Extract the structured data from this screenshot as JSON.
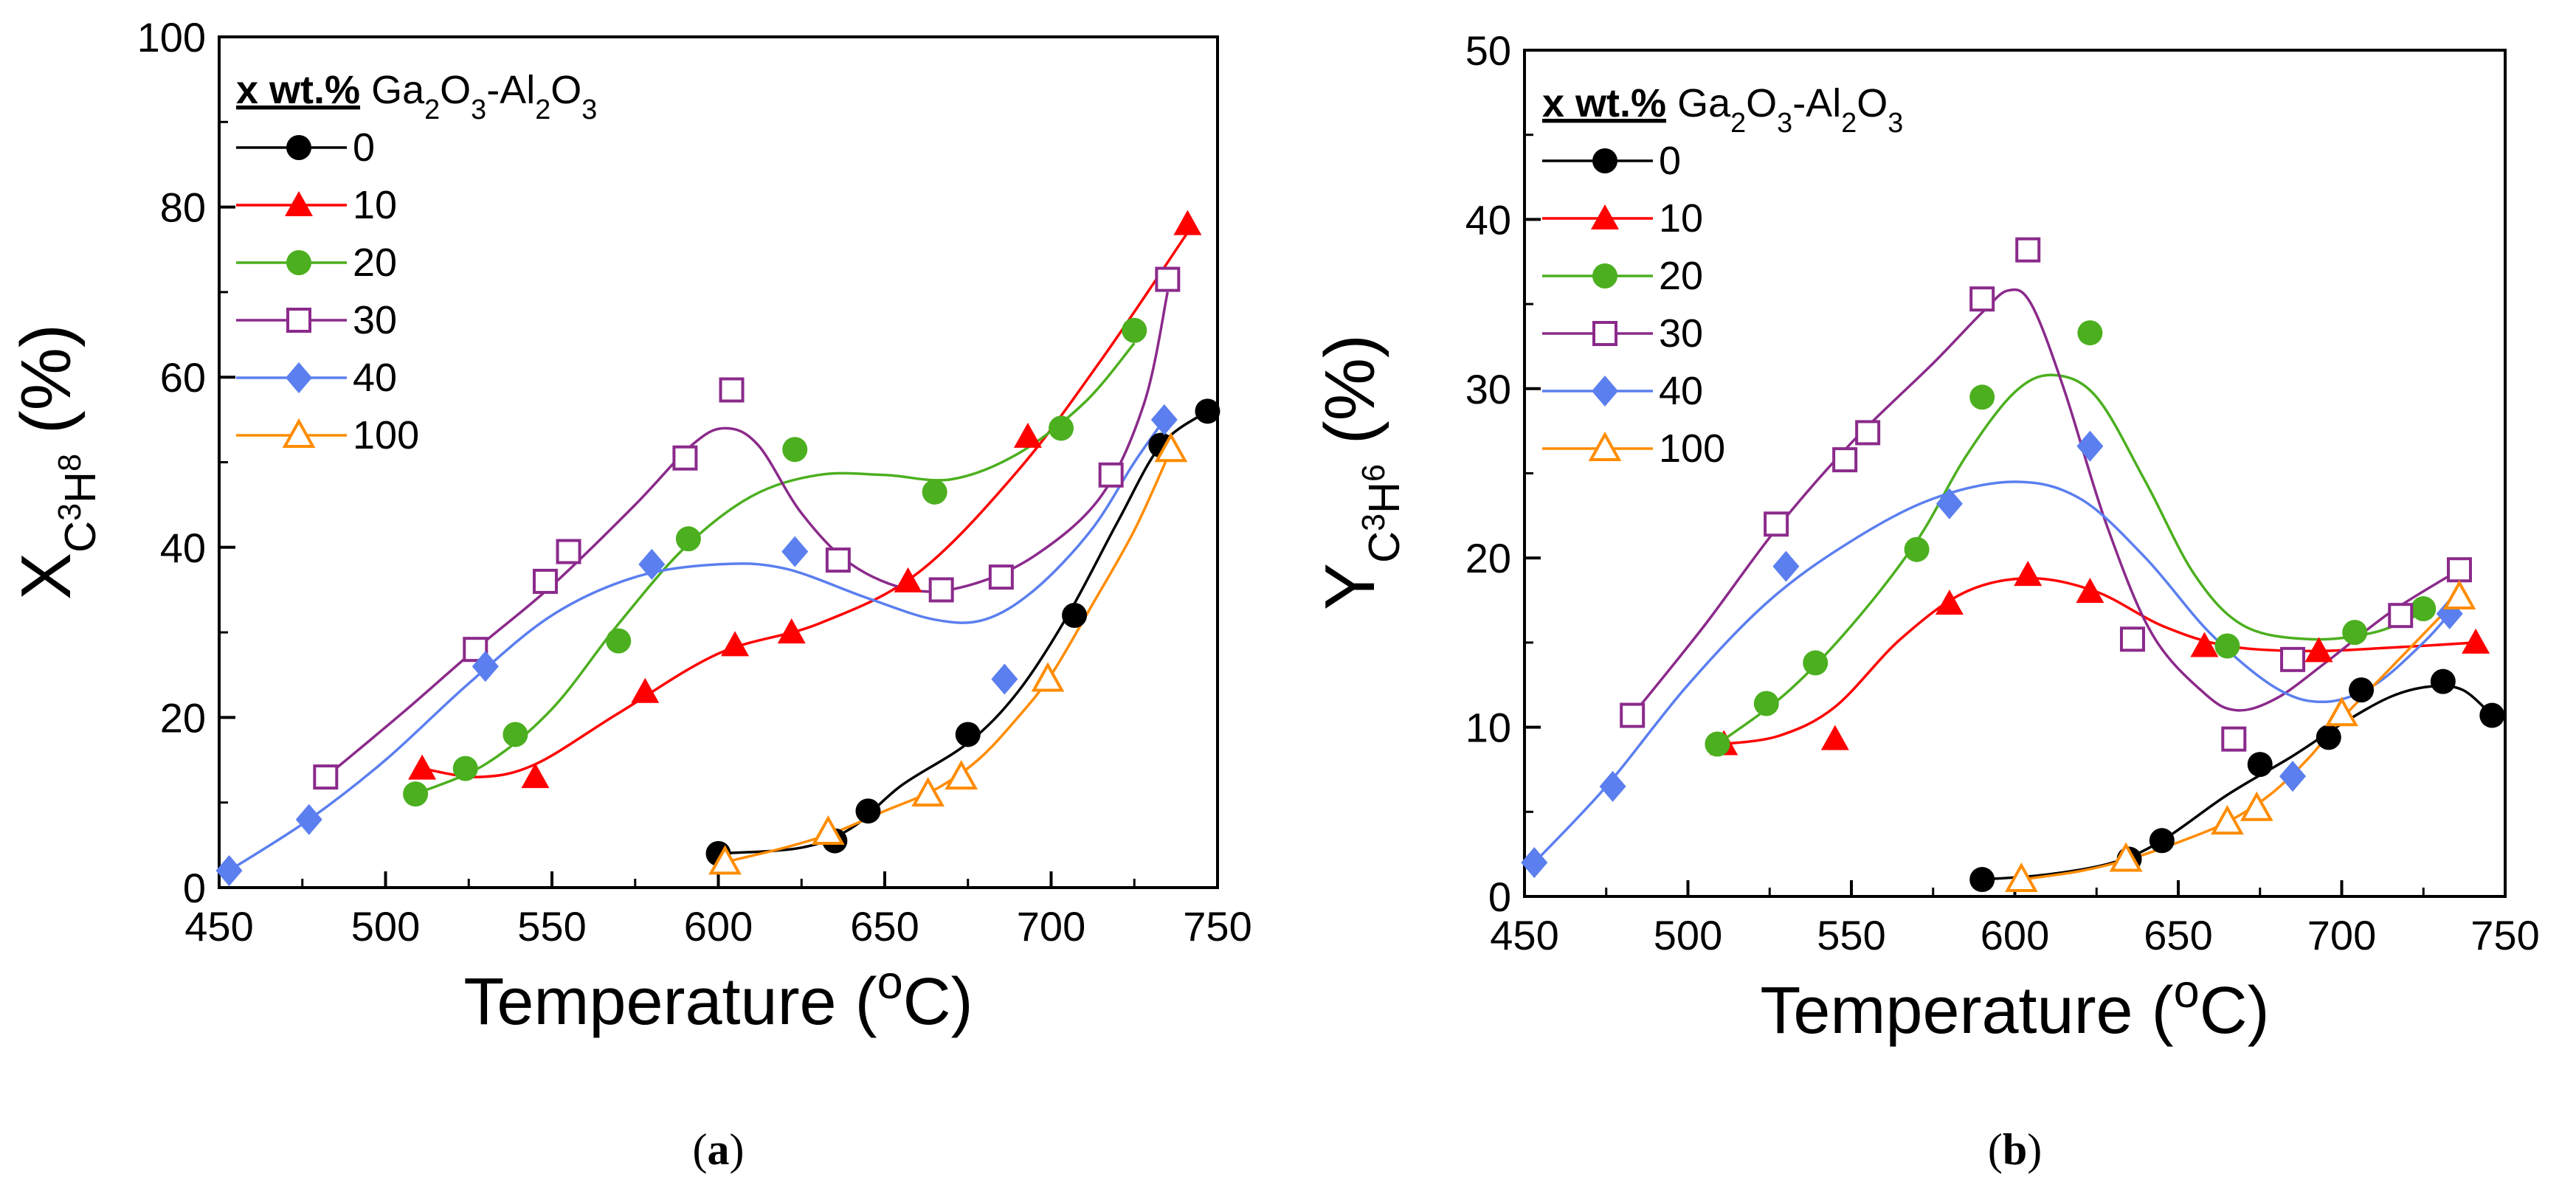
{
  "colors": {
    "0": "#000000",
    "10": "#ff0000",
    "20": "#4caf1f",
    "30": "#8b2a8b",
    "40": "#5b7fef",
    "100": "#ff8c00"
  },
  "legend_header": {
    "bold": "x wt.%",
    "formula": "Ga2O3-Al2O3"
  },
  "chart_data": [
    {
      "type": "scatter",
      "panel": "(a)",
      "xlabel": "Temperature (oC)",
      "ylabel": "XC3H8 (%)",
      "xlim": [
        450,
        750
      ],
      "ylim": [
        0,
        100
      ],
      "xticks": [
        450,
        500,
        550,
        600,
        650,
        700,
        750
      ],
      "yticks": [
        0,
        20,
        40,
        60,
        80,
        100
      ],
      "legend_title": "x wt.% Ga2O3-Al2O3",
      "series": [
        {
          "name": "0",
          "marker": "circle",
          "fill": true,
          "points": [
            [
              600,
              4
            ],
            [
              635,
              5.5
            ],
            [
              645,
              9
            ],
            [
              675,
              18
            ],
            [
              707,
              32
            ],
            [
              733,
              52
            ],
            [
              747,
              56
            ]
          ],
          "fit": [
            [
              600,
              4
            ],
            [
              625,
              4.7
            ],
            [
              640,
              7
            ],
            [
              655,
              12
            ],
            [
              675,
              17
            ],
            [
              690,
              23
            ],
            [
              705,
              32
            ],
            [
              720,
              43
            ],
            [
              733,
              52
            ],
            [
              747,
              56
            ]
          ]
        },
        {
          "name": "10",
          "marker": "triangle",
          "fill": true,
          "points": [
            [
              511,
              14
            ],
            [
              545,
              13
            ],
            [
              578,
              23
            ],
            [
              605,
              28.5
            ],
            [
              622,
              30
            ],
            [
              657,
              36
            ],
            [
              693,
              53
            ],
            [
              741,
              78
            ]
          ],
          "fit": [
            [
              511,
              14
            ],
            [
              528,
              13
            ],
            [
              545,
              14.5
            ],
            [
              570,
              20.5
            ],
            [
              600,
              27.5
            ],
            [
              630,
              31
            ],
            [
              660,
              37
            ],
            [
              690,
              49
            ],
            [
              715,
              62
            ],
            [
              741,
              77
            ]
          ]
        },
        {
          "name": "20",
          "marker": "circle",
          "fill": true,
          "points": [
            [
              509,
              11
            ],
            [
              524,
              14
            ],
            [
              539,
              18
            ],
            [
              570,
              29
            ],
            [
              591,
              41
            ],
            [
              623,
              51.5
            ],
            [
              665,
              46.5
            ],
            [
              703,
              54
            ],
            [
              725,
              65.5
            ]
          ],
          "fit": [
            [
              509,
              11
            ],
            [
              530,
              14.5
            ],
            [
              550,
              21
            ],
            [
              570,
              31
            ],
            [
              590,
              40
            ],
            [
              610,
              46
            ],
            [
              630,
              48.5
            ],
            [
              650,
              48.5
            ],
            [
              670,
              48
            ],
            [
              690,
              51
            ],
            [
              710,
              57
            ],
            [
              725,
              64
            ]
          ]
        },
        {
          "name": "30",
          "marker": "square",
          "fill": false,
          "points": [
            [
              482,
              13
            ],
            [
              527,
              28
            ],
            [
              548,
              36
            ],
            [
              555,
              39.5
            ],
            [
              590,
              50.5
            ],
            [
              604,
              58.5
            ],
            [
              636,
              38.5
            ],
            [
              667,
              35
            ],
            [
              685,
              36.5
            ],
            [
              718,
              48.5
            ],
            [
              735,
              71.5
            ]
          ],
          "fit": [
            [
              482,
              13
            ],
            [
              505,
              20.5
            ],
            [
              527,
              28
            ],
            [
              550,
              35.5
            ],
            [
              575,
              45
            ],
            [
              592,
              52
            ],
            [
              602,
              54
            ],
            [
              612,
              52
            ],
            [
              625,
              44
            ],
            [
              640,
              38
            ],
            [
              658,
              35
            ],
            [
              675,
              35.5
            ],
            [
              695,
              39
            ],
            [
              715,
              46
            ],
            [
              728,
              57
            ],
            [
              735,
              70
            ]
          ]
        },
        {
          "name": "40",
          "marker": "diamond",
          "fill": true,
          "points": [
            [
              453,
              2
            ],
            [
              477,
              8
            ],
            [
              530,
              26
            ],
            [
              580,
              38
            ],
            [
              623,
              39.5
            ],
            [
              686,
              24.5
            ],
            [
              734,
              55
            ]
          ],
          "fit": [
            [
              453,
              2
            ],
            [
              477,
              8
            ],
            [
              500,
              15
            ],
            [
              525,
              24
            ],
            [
              550,
              32
            ],
            [
              575,
              36.5
            ],
            [
              600,
              38
            ],
            [
              620,
              37.5
            ],
            [
              645,
              34
            ],
            [
              665,
              31.5
            ],
            [
              680,
              31.5
            ],
            [
              695,
              35
            ],
            [
              712,
              42
            ],
            [
              725,
              50
            ],
            [
              734,
              55
            ]
          ]
        },
        {
          "name": "100",
          "marker": "triangle",
          "fill": false,
          "points": [
            [
              602,
              3
            ],
            [
              633,
              6.5
            ],
            [
              663,
              11
            ],
            [
              673,
              13
            ],
            [
              699,
              24.5
            ],
            [
              736,
              51.5
            ]
          ],
          "fit": [
            [
              602,
              3
            ],
            [
              620,
              4.7
            ],
            [
              635,
              6.5
            ],
            [
              650,
              9
            ],
            [
              665,
              11.5
            ],
            [
              678,
              15
            ],
            [
              690,
              20
            ],
            [
              700,
              25
            ],
            [
              712,
              33
            ],
            [
              725,
              42
            ],
            [
              736,
              51.5
            ]
          ]
        }
      ]
    },
    {
      "type": "scatter",
      "panel": "(b)",
      "xlabel": "Temperature (oC)",
      "ylabel": "YC3H6 (%)",
      "xlim": [
        450,
        750
      ],
      "ylim": [
        0,
        50
      ],
      "xticks": [
        450,
        500,
        550,
        600,
        650,
        700,
        750
      ],
      "yticks": [
        0,
        10,
        20,
        30,
        40,
        50
      ],
      "legend_title": "x wt.% Ga2O3-Al2O3",
      "series": [
        {
          "name": "0",
          "marker": "circle",
          "fill": true,
          "points": [
            [
              590,
              1
            ],
            [
              635,
              2.2
            ],
            [
              645,
              3.3
            ],
            [
              675,
              7.8
            ],
            [
              696,
              9.4
            ],
            [
              706,
              12.2
            ],
            [
              731,
              12.7
            ],
            [
              746,
              10.7
            ]
          ],
          "fit": [
            [
              590,
              1
            ],
            [
              610,
              1.3
            ],
            [
              630,
              2
            ],
            [
              645,
              3.3
            ],
            [
              665,
              6
            ],
            [
              685,
              8.3
            ],
            [
              700,
              10.2
            ],
            [
              715,
              11.8
            ],
            [
              727,
              12.4
            ],
            [
              737,
              12.2
            ],
            [
              746,
              10.7
            ]
          ]
        },
        {
          "name": "10",
          "marker": "triangle",
          "fill": true,
          "points": [
            [
              511,
              9
            ],
            [
              545,
              9.3
            ],
            [
              580,
              17.3
            ],
            [
              604,
              19
            ],
            [
              623,
              18
            ],
            [
              658,
              14.8
            ],
            [
              693,
              14.5
            ],
            [
              741,
              15
            ]
          ],
          "fit": [
            [
              511,
              9
            ],
            [
              528,
              9.5
            ],
            [
              545,
              11.2
            ],
            [
              565,
              15.2
            ],
            [
              585,
              18
            ],
            [
              605,
              18.8
            ],
            [
              625,
              18
            ],
            [
              645,
              16
            ],
            [
              665,
              14.8
            ],
            [
              690,
              14.5
            ],
            [
              715,
              14.7
            ],
            [
              741,
              15
            ]
          ]
        },
        {
          "name": "20",
          "marker": "circle",
          "fill": true,
          "points": [
            [
              509,
              9
            ],
            [
              524,
              11.4
            ],
            [
              539,
              13.8
            ],
            [
              570,
              20.5
            ],
            [
              590,
              29.5
            ],
            [
              623,
              33.3
            ],
            [
              665,
              14.8
            ],
            [
              704,
              15.6
            ],
            [
              725,
              17
            ]
          ],
          "fit": [
            [
              509,
              9
            ],
            [
              530,
              12
            ],
            [
              550,
              16
            ],
            [
              570,
              21
            ],
            [
              585,
              26
            ],
            [
              600,
              29.8
            ],
            [
              612,
              30.8
            ],
            [
              625,
              29.5
            ],
            [
              640,
              24.5
            ],
            [
              655,
              19
            ],
            [
              670,
              16
            ],
            [
              690,
              15.2
            ],
            [
              710,
              15.6
            ],
            [
              725,
              16.8
            ]
          ]
        },
        {
          "name": "30",
          "marker": "square",
          "fill": false,
          "points": [
            [
              483,
              10.7
            ],
            [
              527,
              22
            ],
            [
              548,
              25.8
            ],
            [
              555,
              27.4
            ],
            [
              590,
              35.3
            ],
            [
              604,
              38.2
            ],
            [
              636,
              15.2
            ],
            [
              667,
              9.3
            ],
            [
              685,
              14
            ],
            [
              718,
              16.6
            ],
            [
              736,
              19.3
            ]
          ],
          "fit": [
            [
              483,
              10.7
            ],
            [
              505,
              16
            ],
            [
              527,
              21.7
            ],
            [
              550,
              26.8
            ],
            [
              575,
              31.5
            ],
            [
              590,
              34.5
            ],
            [
              598,
              35.8
            ],
            [
              605,
              35
            ],
            [
              615,
              30
            ],
            [
              628,
              22
            ],
            [
              642,
              15.5
            ],
            [
              658,
              12
            ],
            [
              668,
              11
            ],
            [
              680,
              11.7
            ],
            [
              695,
              13.8
            ],
            [
              715,
              16.8
            ],
            [
              736,
              19.3
            ]
          ]
        },
        {
          "name": "40",
          "marker": "diamond",
          "fill": true,
          "points": [
            [
              453,
              2
            ],
            [
              477,
              6.5
            ],
            [
              530,
              19.5
            ],
            [
              580,
              23.2
            ],
            [
              623,
              26.6
            ],
            [
              685,
              7.1
            ],
            [
              733,
              16.7
            ]
          ],
          "fit": [
            [
              453,
              2
            ],
            [
              475,
              6.5
            ],
            [
              500,
              12.5
            ],
            [
              525,
              17.5
            ],
            [
              550,
              21
            ],
            [
              575,
              23.5
            ],
            [
              600,
              24.5
            ],
            [
              620,
              23.5
            ],
            [
              640,
              20
            ],
            [
              660,
              15.5
            ],
            [
              680,
              12.3
            ],
            [
              695,
              11.5
            ],
            [
              710,
              12.5
            ],
            [
              725,
              15
            ],
            [
              733,
              16.7
            ]
          ]
        },
        {
          "name": "100",
          "marker": "triangle",
          "fill": false,
          "points": [
            [
              602,
              1
            ],
            [
              634,
              2.2
            ],
            [
              665,
              4.4
            ],
            [
              674,
              5.2
            ],
            [
              700,
              10.8
            ],
            [
              736,
              17.7
            ]
          ],
          "fit": [
            [
              602,
              1
            ],
            [
              620,
              1.5
            ],
            [
              635,
              2.2
            ],
            [
              650,
              3.2
            ],
            [
              665,
              4.4
            ],
            [
              678,
              6
            ],
            [
              690,
              8.2
            ],
            [
              700,
              10.5
            ],
            [
              715,
              13.5
            ],
            [
              736,
              17.7
            ]
          ]
        }
      ]
    }
  ]
}
